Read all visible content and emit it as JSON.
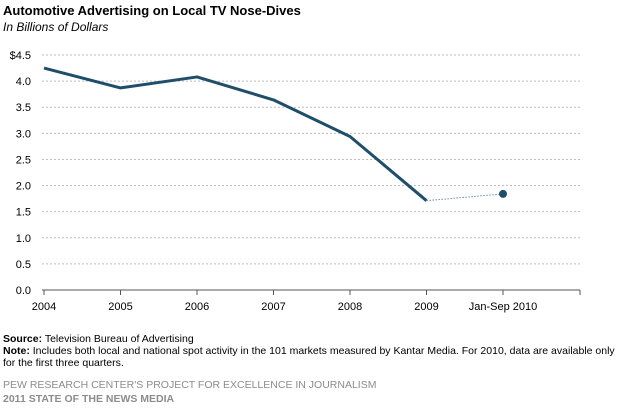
{
  "chart_data": {
    "type": "line",
    "title": "Automotive Advertising  on Local TV Nose-Dives",
    "subtitle": "In Billions of Dollars",
    "xlabel": "",
    "ylabel": "",
    "categories": [
      "2004",
      "2005",
      "2006",
      "2007",
      "2008",
      "2009",
      "Jan-Sep 2010"
    ],
    "series": [
      {
        "values": [
          4.25,
          3.87,
          4.08,
          3.64,
          2.94,
          1.71,
          null
        ]
      },
      {
        "values": [
          null,
          null,
          null,
          null,
          null,
          null,
          1.84
        ]
      }
    ],
    "ylim": [
      0,
      4.5
    ],
    "yticks": [
      {
        "value": 4.5,
        "label": "$4.5"
      },
      {
        "value": 4.0,
        "label": "4.0"
      },
      {
        "value": 3.5,
        "label": "3.5"
      },
      {
        "value": 3.0,
        "label": "3.0"
      },
      {
        "value": 2.5,
        "label": "2.5"
      },
      {
        "value": 2.0,
        "label": "2.0"
      },
      {
        "value": 1.5,
        "label": "1.5"
      },
      {
        "value": 1.0,
        "label": "1.0"
      },
      {
        "value": 0.5,
        "label": "0.5"
      },
      {
        "value": 0.0,
        "label": "0.0"
      }
    ],
    "grid": true,
    "line_color": "#1f4e6b",
    "connector_color": "#6a8ea6"
  },
  "notes": {
    "source_label": "Source:",
    "source_text": " Television Bureau of Advertising",
    "note_label": "Note:",
    "note_text": " Includes both local and national spot activity in the 101 markets measured by Kantar Media. For 2010, data are available only for the first three quarters."
  },
  "footer": {
    "line1": "PEW RESEARCH CENTER'S PROJECT FOR EXCELLENCE IN JOURNALISM",
    "line2": "2011 STATE OF THE NEWS MEDIA"
  }
}
